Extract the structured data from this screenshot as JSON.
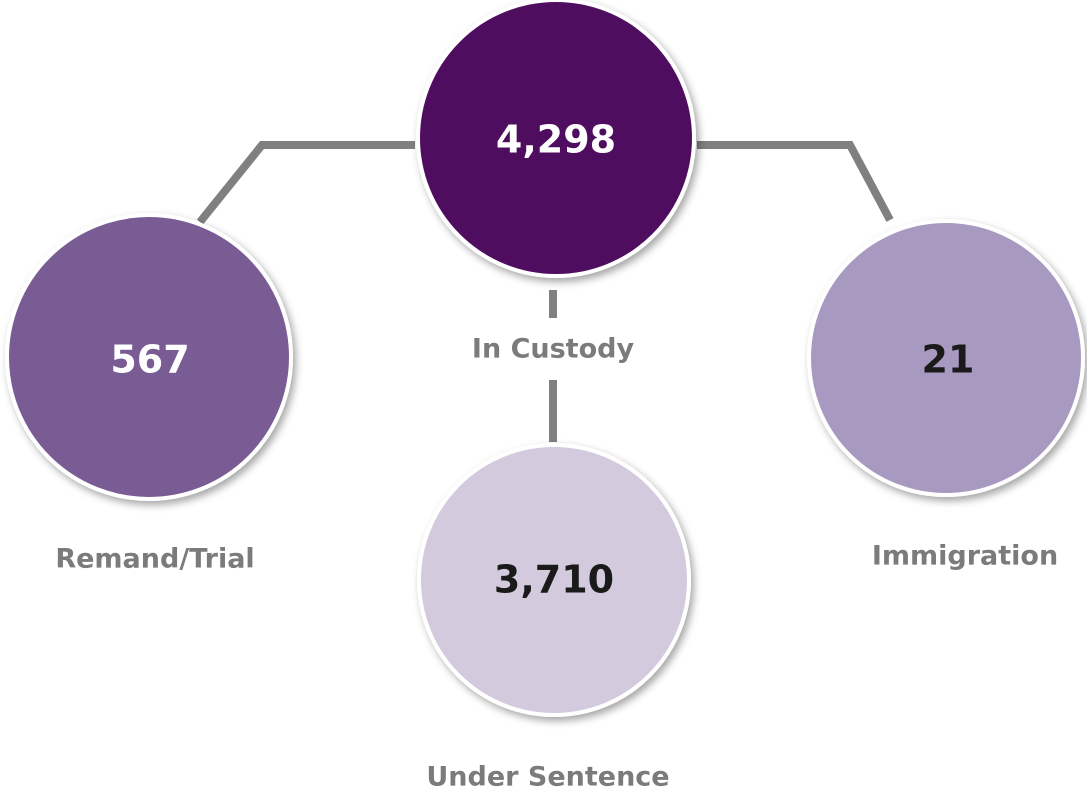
{
  "nodes": [
    {
      "value": "4,298",
      "label": "In Custody"
    },
    {
      "value": "567",
      "label": "Remand/Trial"
    },
    {
      "value": "3,710",
      "label": "Under Sentence"
    },
    {
      "value": "21",
      "label": "Immigration"
    }
  ]
}
